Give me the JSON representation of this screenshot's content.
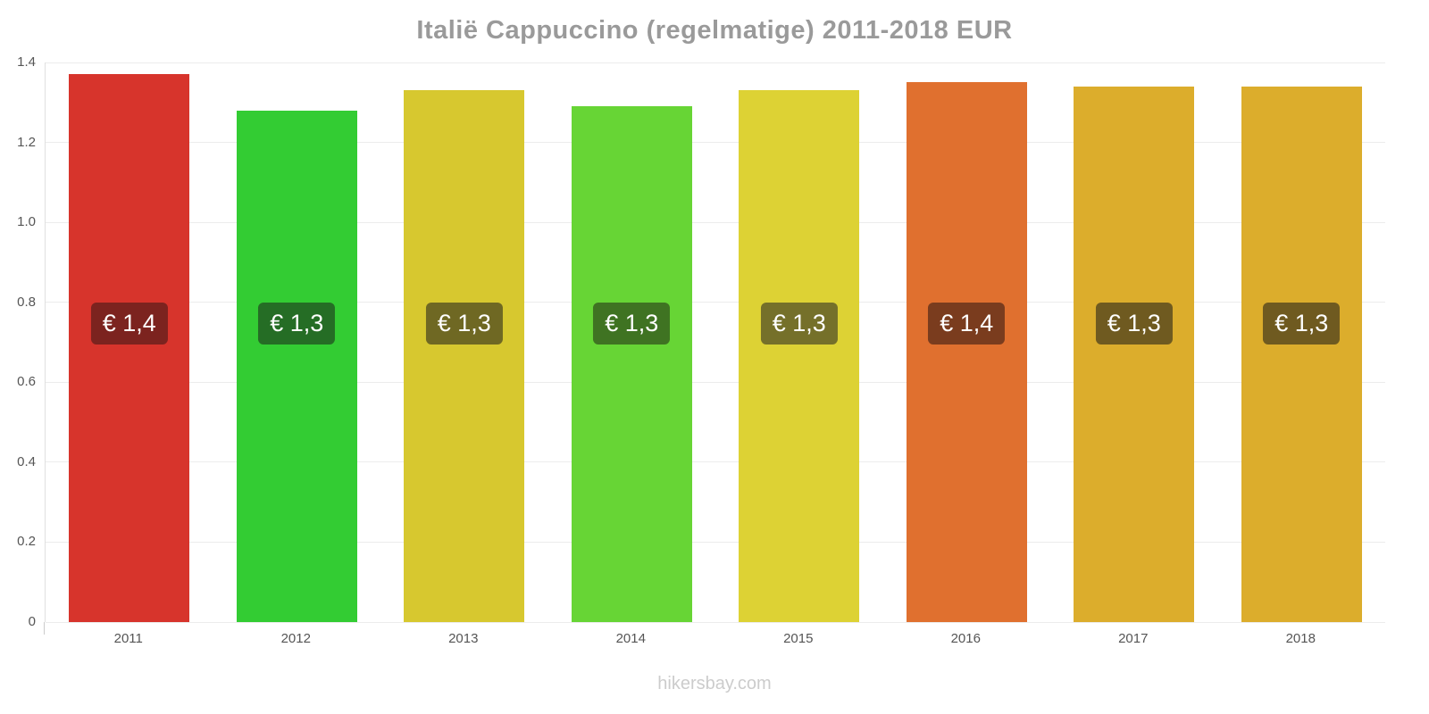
{
  "title": "Italië Cappuccino (regelmatige) 2011-2018 EUR",
  "footer": "hikersbay.com",
  "chart_data": {
    "type": "bar",
    "title": "Italië Cappuccino (regelmatige) 2011-2018 EUR",
    "categories": [
      "2011",
      "2012",
      "2013",
      "2014",
      "2015",
      "2016",
      "2017",
      "2018"
    ],
    "values": [
      1.37,
      1.28,
      1.33,
      1.29,
      1.33,
      1.35,
      1.34,
      1.34
    ],
    "bar_labels": [
      "€ 1,4",
      "€ 1,3",
      "€ 1,3",
      "€ 1,3",
      "€ 1,3",
      "€ 1,4",
      "€ 1,3",
      "€ 1,3"
    ],
    "bar_colors": [
      "#d7342c",
      "#33cc33",
      "#d7c82f",
      "#67d535",
      "#ddd234",
      "#e0702f",
      "#dcad2c",
      "#dcad2c"
    ],
    "badge_colors": [
      "#7c231f",
      "#256d25",
      "#6f6823",
      "#3f7322",
      "#75702a",
      "#7a3c1e",
      "#6f5a20",
      "#6f5a20"
    ],
    "xlabel": "",
    "ylabel": "",
    "ylim": [
      0,
      1.4
    ],
    "yticks": [
      0,
      0.2,
      0.4,
      0.6,
      0.8,
      1.0,
      1.2,
      1.4
    ],
    "ytick_labels": [
      "0",
      "0.2",
      "0.4",
      "0.6",
      "0.8",
      "1.0",
      "1.2",
      "1.4"
    ],
    "grid": true,
    "legend": false
  }
}
